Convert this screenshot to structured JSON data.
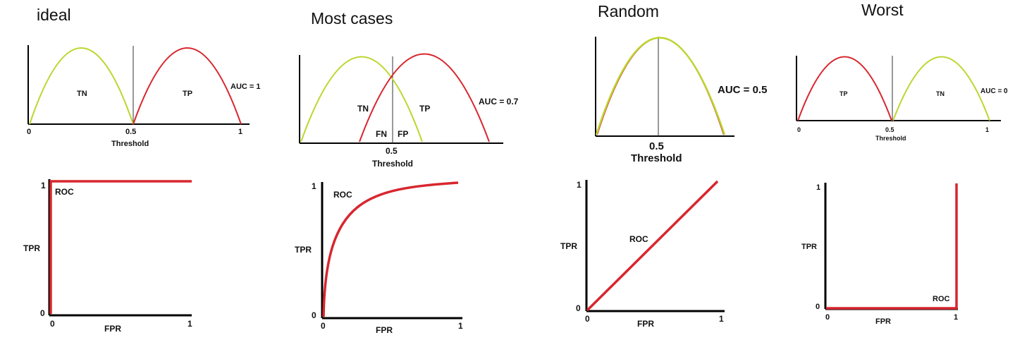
{
  "panels": [
    {
      "title": "ideal",
      "auc": "AUC = 1",
      "dist": [
        "TN",
        "TP"
      ],
      "threshold": "0.5",
      "xlabel": "Threshold",
      "x_ticks": [
        "0",
        "0.5",
        "1"
      ]
    },
    {
      "title": "Most cases",
      "auc": "AUC = 0.7",
      "dist": [
        "TN",
        "TP",
        "FN",
        "FP"
      ],
      "threshold": "0.5",
      "xlabel": "Threshold"
    },
    {
      "title": "Random",
      "auc": "AUC = 0.5",
      "threshold": "0.5",
      "xlabel": "Threshold"
    },
    {
      "title": "Worst",
      "auc": "AUC = 0",
      "dist": [
        "TP",
        "TN"
      ],
      "threshold": "0.5",
      "xlabel": "Threshold",
      "x_ticks": [
        "0",
        "0.5",
        "1"
      ]
    }
  ],
  "roc": [
    {
      "curve_label": "ROC",
      "ylabel": "TPR",
      "xlabel": "FPR",
      "y_ticks": [
        "1",
        "0"
      ],
      "x_ticks": [
        "0",
        "1"
      ]
    },
    {
      "curve_label": "ROC",
      "ylabel": "TPR",
      "xlabel": "FPR",
      "y_ticks": [
        "1",
        "0"
      ],
      "x_ticks": [
        "0",
        "1"
      ]
    },
    {
      "curve_label": "ROC",
      "ylabel": "TPR",
      "xlabel": "FPR",
      "y_ticks": [
        "1",
        "0"
      ],
      "x_ticks": [
        "0",
        "1"
      ]
    },
    {
      "curve_label": "ROC",
      "ylabel": "TPR",
      "xlabel": "FPR",
      "y_ticks": [
        "1",
        "0"
      ],
      "x_ticks": [
        "0",
        "1"
      ]
    }
  ],
  "colors": {
    "negative": "#bcd62e",
    "positive": "#d8262e",
    "axis": "#000000",
    "threshold_line": "#333333"
  }
}
